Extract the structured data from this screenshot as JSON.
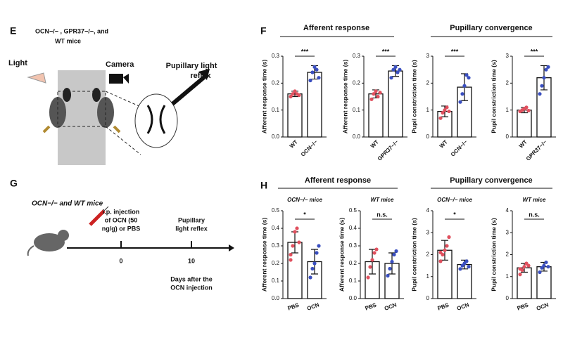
{
  "panels": {
    "E": {
      "label": "E",
      "title": [
        "OCN−/− , GPR37−/−, and",
        "WT mice"
      ],
      "light": "Light",
      "camera": "Camera",
      "reflex": [
        "Pupillary light",
        "reflex"
      ]
    },
    "F": {
      "label": "F",
      "groups": [
        "Afferent response",
        "Pupillary convergence"
      ]
    },
    "G": {
      "label": "G",
      "title": "OCN−/− and WT mice",
      "injection": [
        "i.p. injection",
        "of OCN (50",
        "ng/g) or PBS"
      ],
      "reflex": [
        "Pupillary",
        "light reflex"
      ],
      "day0": "0",
      "day10": "10",
      "axis_label": [
        "Days after the",
        "OCN injection"
      ]
    },
    "H": {
      "label": "H",
      "groups": [
        "Afferent response",
        "Pupillary convergence"
      ]
    }
  },
  "chart_data": [
    {
      "type": "bar",
      "ylabel": "Afferent response time (s)",
      "categories": [
        "WT",
        "OCN−/−"
      ],
      "values": [
        0.16,
        0.24
      ],
      "errors": [
        0.01,
        0.025
      ],
      "points": [
        [
          0.15,
          0.16,
          0.17,
          0.16,
          0.155
        ],
        [
          0.21,
          0.24,
          0.26,
          0.25,
          0.22
        ]
      ],
      "colors": [
        "#e0505e",
        "#3a4fc0"
      ],
      "annotation": "***",
      "ylim": [
        0,
        0.3
      ],
      "yticks": [
        {
          "value": 0,
          "label": "0.0"
        },
        {
          "value": 0.1,
          "label": "0.1"
        },
        {
          "value": 0.2,
          "label": "0.2"
        },
        {
          "value": 0.3,
          "label": "0.3"
        }
      ]
    },
    {
      "type": "bar",
      "ylabel": "Afferent response time (s)",
      "categories": [
        "WT",
        "GPR37−/−"
      ],
      "values": [
        0.16,
        0.245
      ],
      "errors": [
        0.015,
        0.02
      ],
      "points": [
        [
          0.14,
          0.16,
          0.17,
          0.15,
          0.165
        ],
        [
          0.22,
          0.25,
          0.26,
          0.24,
          0.25
        ]
      ],
      "colors": [
        "#e0505e",
        "#3a4fc0"
      ],
      "annotation": "***",
      "ylim": [
        0,
        0.3
      ],
      "yticks": [
        {
          "value": 0,
          "label": "0.0"
        },
        {
          "value": 0.1,
          "label": "0.1"
        },
        {
          "value": 0.2,
          "label": "0.2"
        },
        {
          "value": 0.3,
          "label": "0.3"
        }
      ]
    },
    {
      "type": "bar",
      "ylabel": "Pupil constriction time (s)",
      "categories": [
        "WT",
        "OCN−/−"
      ],
      "values": [
        0.95,
        1.85
      ],
      "errors": [
        0.2,
        0.5
      ],
      "points": [
        [
          0.7,
          0.9,
          1.0,
          1.1,
          0.95
        ],
        [
          1.3,
          1.6,
          1.9,
          2.3,
          2.2
        ]
      ],
      "colors": [
        "#e0505e",
        "#3a4fc0"
      ],
      "annotation": "***",
      "ylim": [
        0,
        3
      ],
      "yticks": [
        0,
        1,
        2,
        3
      ]
    },
    {
      "type": "bar",
      "ylabel": "Pupil constriction time (s)",
      "categories": [
        "WT",
        "GPR37−/−"
      ],
      "values": [
        1.0,
        2.2
      ],
      "errors": [
        0.1,
        0.45
      ],
      "points": [
        [
          0.95,
          1.0,
          1.05,
          1.1,
          0.98
        ],
        [
          1.6,
          1.9,
          2.2,
          2.5,
          2.6
        ]
      ],
      "colors": [
        "#e0505e",
        "#3a4fc0"
      ],
      "annotation": "***",
      "ylim": [
        0,
        3
      ],
      "yticks": [
        0,
        1,
        2,
        3
      ]
    },
    {
      "type": "bar",
      "subtitle": "OCN−/− mice",
      "ylabel": "Afferent response time (s)",
      "categories": [
        "PBS",
        "OCN"
      ],
      "values": [
        0.32,
        0.21
      ],
      "errors": [
        0.06,
        0.07
      ],
      "points": [
        [
          0.25,
          0.3,
          0.38,
          0.4,
          0.32,
          0.22
        ],
        [
          0.12,
          0.17,
          0.2,
          0.26,
          0.3
        ]
      ],
      "colors": [
        "#e0505e",
        "#3a4fc0"
      ],
      "annotation": "*",
      "ylim": [
        0,
        0.5
      ],
      "yticks": [
        {
          "value": 0,
          "label": "0.0"
        },
        {
          "value": 0.1,
          "label": "0.1"
        },
        {
          "value": 0.2,
          "label": "0.2"
        },
        {
          "value": 0.3,
          "label": "0.3"
        },
        {
          "value": 0.4,
          "label": "0.4"
        },
        {
          "value": 0.5,
          "label": "0.5"
        }
      ]
    },
    {
      "type": "bar",
      "subtitle": "WT mice",
      "ylabel": "Afferent response time (s)",
      "categories": [
        "PBS",
        "OCN"
      ],
      "values": [
        0.21,
        0.2
      ],
      "errors": [
        0.07,
        0.06
      ],
      "points": [
        [
          0.12,
          0.18,
          0.22,
          0.26,
          0.28
        ],
        [
          0.13,
          0.17,
          0.21,
          0.25,
          0.27
        ]
      ],
      "colors": [
        "#e0505e",
        "#3a4fc0"
      ],
      "annotation": "n.s.",
      "ylim": [
        0,
        0.5
      ],
      "yticks": [
        {
          "value": 0,
          "label": "0.0"
        },
        {
          "value": 0.1,
          "label": "0.1"
        },
        {
          "value": 0.2,
          "label": "0.2"
        },
        {
          "value": 0.3,
          "label": "0.3"
        },
        {
          "value": 0.4,
          "label": "0.4"
        },
        {
          "value": 0.5,
          "label": "0.5"
        }
      ]
    },
    {
      "type": "bar",
      "subtitle": "OCN−/− mice",
      "ylabel": "Pupil constriction time (s)",
      "categories": [
        "PBS",
        "OCN"
      ],
      "values": [
        2.2,
        1.55
      ],
      "errors": [
        0.45,
        0.2
      ],
      "points": [
        [
          1.7,
          2.0,
          2.2,
          2.4,
          2.8,
          2.1
        ],
        [
          1.35,
          1.5,
          1.6,
          1.7,
          1.45
        ]
      ],
      "colors": [
        "#e0505e",
        "#3a4fc0"
      ],
      "annotation": "*",
      "ylim": [
        0,
        4
      ],
      "yticks": [
        0,
        1,
        2,
        3,
        4
      ]
    },
    {
      "type": "bar",
      "subtitle": "WT mice",
      "ylabel": "Pupil constriction time (s)",
      "categories": [
        "PBS",
        "OCN"
      ],
      "values": [
        1.4,
        1.45
      ],
      "errors": [
        0.2,
        0.2
      ],
      "points": [
        [
          1.1,
          1.3,
          1.45,
          1.6,
          1.5,
          1.35
        ],
        [
          1.2,
          1.4,
          1.5,
          1.65,
          1.45
        ]
      ],
      "colors": [
        "#e0505e",
        "#3a4fc0"
      ],
      "annotation": "n.s.",
      "ylim": [
        0,
        4
      ],
      "yticks": [
        0,
        1,
        2,
        3,
        4
      ]
    }
  ]
}
